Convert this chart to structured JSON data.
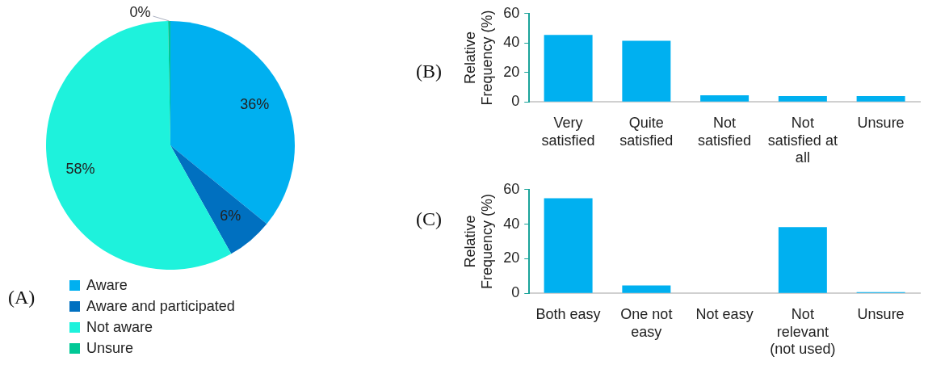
{
  "chart_data": [
    {
      "type": "pie",
      "title": "(A)",
      "categories": [
        "Aware",
        "Aware and participated",
        "Not aware",
        "Unsure"
      ],
      "values": [
        36,
        6,
        58,
        0.3
      ],
      "colors": [
        "#00b0f0",
        "#0070c0",
        "#1ef2dc",
        "#00c896"
      ],
      "value_labels": [
        "36%",
        "6%",
        "58%",
        "0%"
      ],
      "legend": "bottom left"
    },
    {
      "type": "bar",
      "title": "(B)",
      "ylabel": "Relative Frequency (%)",
      "categories": [
        "Very satisfied",
        "Quite satisfied",
        "Not satisfied",
        "Not satisfied at all",
        "Unsure"
      ],
      "values": [
        45.5,
        41.5,
        4.5,
        4,
        4
      ],
      "color": "#00b0f0",
      "ylim": [
        0,
        60
      ],
      "yticks": [
        0,
        20,
        40,
        60
      ]
    },
    {
      "type": "bar",
      "title": "(C)",
      "ylabel": "Relative Frequency (%)",
      "categories": [
        "Both easy",
        "One not easy",
        "Not easy",
        "Not relevant (not used)",
        "Unsure"
      ],
      "values": [
        55,
        4.5,
        0,
        38.3,
        0.7
      ],
      "color": "#00b0f0",
      "ylim": [
        0,
        60
      ],
      "yticks": [
        0,
        20,
        40,
        60
      ]
    }
  ]
}
